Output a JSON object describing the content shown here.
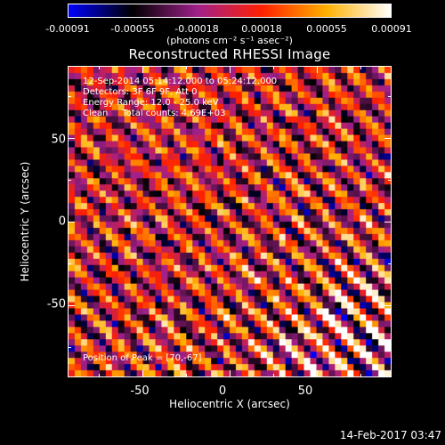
{
  "colorbar": {
    "ticks": [
      "-0.00091",
      "-0.00055",
      "-0.00018",
      "0.00018",
      "0.00055",
      "0.00091"
    ],
    "units": "(photons cm⁻² s⁻¹ asec⁻²)",
    "range": [
      -0.00091,
      0.00091
    ]
  },
  "title": "Reconstructed RHESSI Image",
  "annotations": {
    "line1": "12-Sep-2014 05:14:12.000 to 05:24:12.000",
    "line2": "Detectors: 3F 6F 9F, Att 0",
    "line3": "Energy Range: 12.0 - 25.0 keV",
    "line4": "Clean     Total counts: 4.69E+03",
    "peak": "Position of Peak = [70,-67]"
  },
  "axes": {
    "xlabel": "Heliocentric X (arcsec)",
    "ylabel": "Heliocentric Y (arcsec)",
    "xticks": [
      "-50",
      "0",
      "50"
    ],
    "yticks": [
      "50",
      "0",
      "-50"
    ]
  },
  "timestamp": "14-Feb-2017 03:47",
  "chart_data": {
    "type": "heatmap",
    "title": "Reconstructed RHESSI Image",
    "xlabel": "Heliocentric X (arcsec)",
    "ylabel": "Heliocentric Y (arcsec)",
    "xlim": [
      -93,
      93
    ],
    "ylim": [
      -93,
      93
    ],
    "x_ticks": [
      -50,
      0,
      50
    ],
    "y_ticks": [
      -50,
      0,
      50
    ],
    "colorbar_range": [
      -0.00091,
      0.00091
    ],
    "colorbar_ticks": [
      -0.00091,
      -0.00055,
      -0.00018,
      0.00018,
      0.00055,
      0.00091
    ],
    "colormap": [
      "#0000ff",
      "#000000",
      "#a0208a",
      "#ff2000",
      "#ffb000",
      "#ffffff"
    ],
    "peak_position": [
      70,
      -67
    ],
    "pattern": "diagonal stripes rising to upper-right, brightest near lower-right"
  }
}
